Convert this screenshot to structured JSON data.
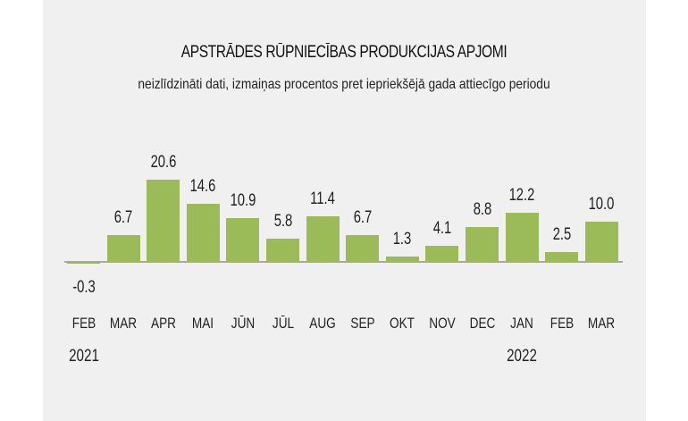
{
  "header": {
    "title": "APSTRĀDES RŪPNIECĪBAS PRODUKCIJAS APJOMI",
    "subtitle": "neizlīdzināti dati, izmaiņas procentos pret iepriekšējā gada attiecīgo periodu"
  },
  "colors": {
    "bar": "#9bbb59",
    "axis": "#a8a8a8",
    "panel": "#f0f0f0"
  },
  "chart_data": {
    "type": "bar",
    "title": "APSTRĀDES RŪPNIECĪBAS PRODUKCIJAS APJOMI",
    "subtitle": "neizlīdzināti dati, izmaiņas procentos pret iepriekšējā gada attiecīgo periodu",
    "categories": [
      "FEB",
      "MAR",
      "APR",
      "MAI",
      "JŪN",
      "JŪL",
      "AUG",
      "SEP",
      "OKT",
      "NOV",
      "DEC",
      "JAN",
      "FEB",
      "MAR"
    ],
    "year_labels": [
      {
        "index": 0,
        "label": "2021"
      },
      {
        "index": 11,
        "label": "2022"
      }
    ],
    "values": [
      -0.3,
      6.7,
      20.6,
      14.6,
      10.9,
      5.8,
      11.4,
      6.7,
      1.3,
      4.1,
      8.8,
      12.2,
      2.5,
      10.0
    ],
    "value_labels": [
      "-0.3",
      "6.7",
      "20.6",
      "14.6",
      "10.9",
      "5.8",
      "11.4",
      "6.7",
      "1.3",
      "4.1",
      "8.8",
      "12.2",
      "2.5",
      "10.0"
    ],
    "xlabel": "",
    "ylabel": "",
    "grid": false,
    "legend": null
  }
}
